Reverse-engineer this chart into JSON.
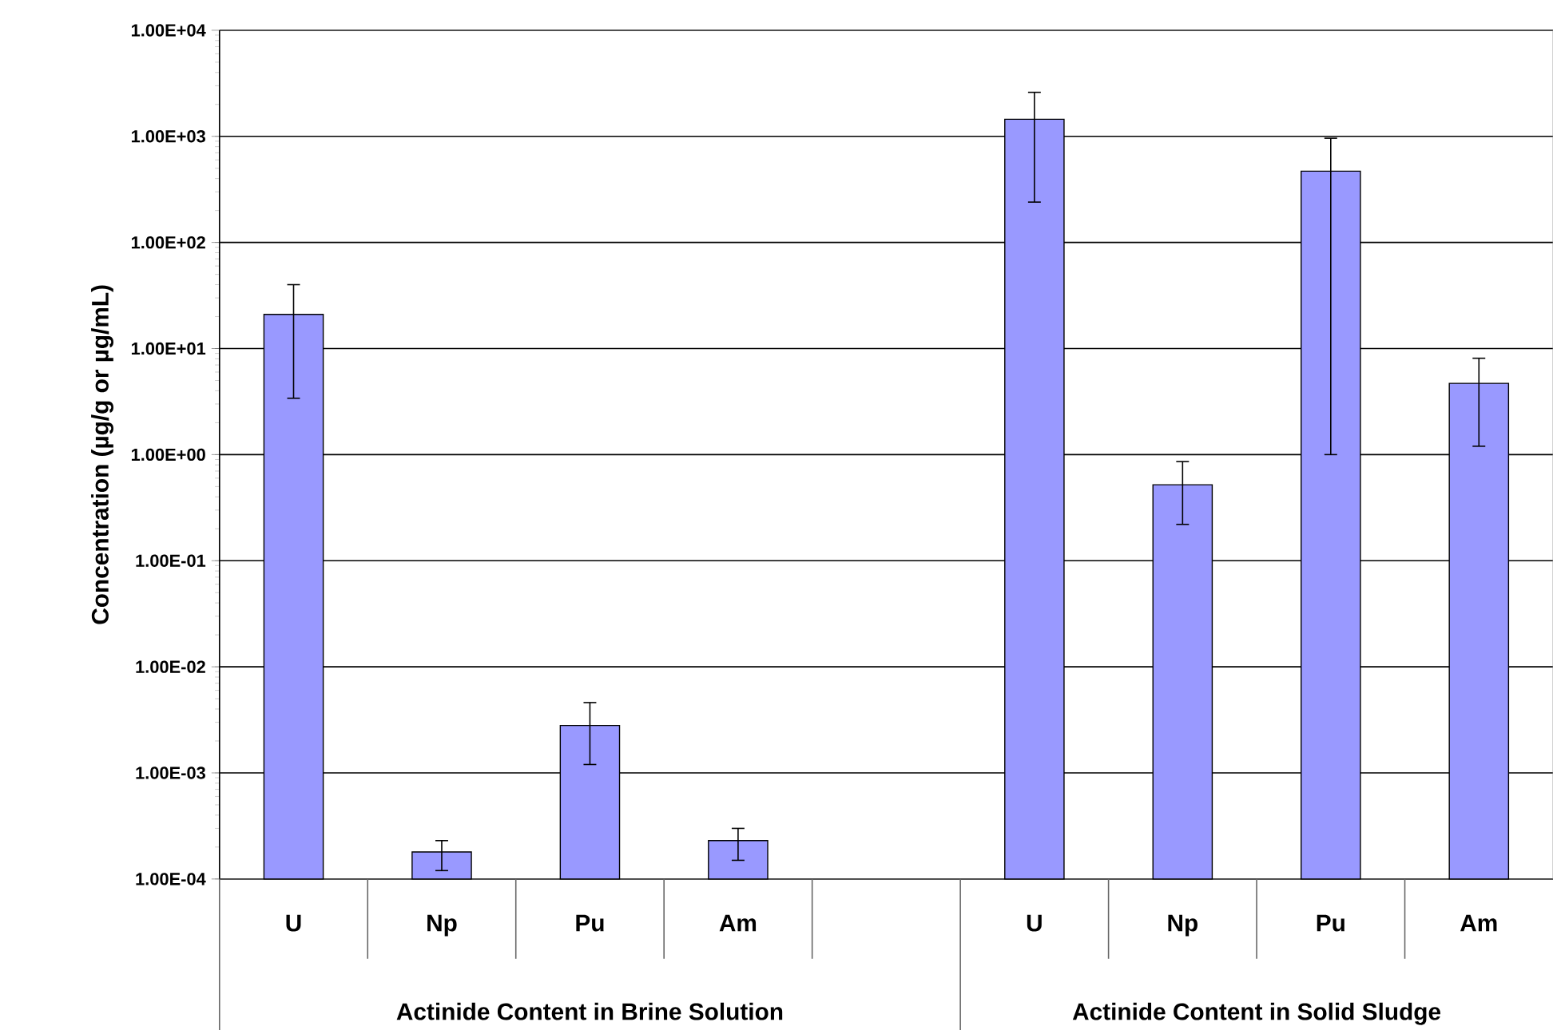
{
  "chart_data": {
    "type": "bar",
    "ylabel": "Concentration (µg/g or µg/mL)",
    "categories": [
      "U",
      "Np",
      "Pu",
      "Am",
      null,
      "U",
      "Np",
      "Pu",
      "Am"
    ],
    "values": [
      21,
      0.00018,
      0.0028,
      0.00023,
      null,
      1450,
      0.52,
      470,
      4.7
    ],
    "errors": [
      [
        3.4,
        40
      ],
      [
        0.00012,
        0.00023
      ],
      [
        0.0012,
        0.0046
      ],
      [
        0.00015,
        0.0003
      ],
      null,
      [
        240,
        2600
      ],
      [
        0.22,
        0.86
      ],
      [
        1.0,
        960
      ],
      [
        1.2,
        8.1
      ]
    ],
    "color": "#9999ff",
    "log": true,
    "grid": "y",
    "ylim": [
      0.0001,
      10000
    ],
    "yticks": [
      {
        "value": 0.0001,
        "label": "1.00E-04"
      },
      {
        "value": 0.001,
        "label": "1.00E-03"
      },
      {
        "value": 0.01,
        "label": "1.00E-02"
      },
      {
        "value": 0.1,
        "label": "1.00E-01"
      },
      {
        "value": 1,
        "label": "1.00E+00"
      },
      {
        "value": 10,
        "label": "1.00E+01"
      },
      {
        "value": 100,
        "label": "1.00E+02"
      },
      {
        "value": 1000,
        "label": "1.00E+03"
      },
      {
        "value": 10000,
        "label": "1.00E+04"
      }
    ],
    "annotations": [
      "Actinide Content in Brine Solution",
      "Actinide Content in Solid Sludge"
    ]
  }
}
